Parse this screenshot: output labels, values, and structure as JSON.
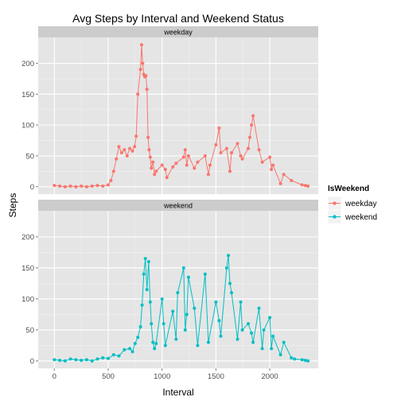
{
  "chart_data": {
    "type": "line",
    "title": "Avg Steps by Interval and Weekend Status",
    "xlabel": "Interval",
    "ylabel": "Steps",
    "xlim": [
      -150,
      2450
    ],
    "ylim": [
      -12,
      242
    ],
    "x_ticks": [
      0,
      500,
      1000,
      1500,
      2000
    ],
    "y_ticks": [
      0,
      50,
      100,
      150,
      200
    ],
    "grid": true,
    "facet_by": "IsWeekend",
    "legend": {
      "title": "IsWeekend",
      "position": "right",
      "entries": [
        "weekday",
        "weekend"
      ]
    },
    "series": [
      {
        "name": "weekday",
        "color": "#F8766D",
        "x": [
          0,
          50,
          100,
          150,
          200,
          250,
          300,
          350,
          400,
          450,
          500,
          525,
          550,
          575,
          600,
          625,
          650,
          675,
          700,
          725,
          745,
          760,
          775,
          800,
          810,
          820,
          830,
          840,
          850,
          860,
          870,
          880,
          890,
          900,
          915,
          930,
          945,
          1000,
          1030,
          1045,
          1100,
          1130,
          1200,
          1215,
          1230,
          1245,
          1300,
          1330,
          1400,
          1430,
          1445,
          1500,
          1530,
          1545,
          1600,
          1630,
          1645,
          1700,
          1730,
          1745,
          1800,
          1815,
          1830,
          1845,
          1900,
          1930,
          2000,
          2015,
          2030,
          2100,
          2130,
          2200,
          2300,
          2330,
          2355
        ],
        "y": [
          2,
          1,
          0,
          1,
          0,
          1,
          0,
          1,
          2,
          1,
          3,
          10,
          25,
          45,
          65,
          55,
          60,
          50,
          62,
          58,
          65,
          82,
          150,
          190,
          230,
          200,
          182,
          178,
          180,
          158,
          80,
          60,
          48,
          30,
          40,
          20,
          25,
          35,
          28,
          15,
          32,
          38,
          48,
          60,
          35,
          50,
          30,
          40,
          50,
          20,
          35,
          68,
          95,
          55,
          62,
          25,
          55,
          70,
          50,
          45,
          62,
          80,
          100,
          115,
          60,
          40,
          48,
          28,
          35,
          5,
          20,
          10,
          3,
          2,
          1
        ]
      },
      {
        "name": "weekend",
        "color": "#00BFC4",
        "x": [
          0,
          50,
          100,
          150,
          200,
          250,
          300,
          350,
          400,
          450,
          500,
          550,
          600,
          650,
          700,
          725,
          750,
          775,
          800,
          815,
          830,
          845,
          860,
          875,
          890,
          900,
          915,
          930,
          945,
          1000,
          1015,
          1030,
          1100,
          1130,
          1145,
          1200,
          1215,
          1230,
          1245,
          1300,
          1330,
          1400,
          1430,
          1500,
          1530,
          1545,
          1600,
          1615,
          1630,
          1645,
          1700,
          1730,
          1745,
          1800,
          1830,
          1845,
          1900,
          1930,
          1945,
          2000,
          2015,
          2030,
          2100,
          2130,
          2200,
          2230,
          2300,
          2330,
          2355
        ],
        "y": [
          2,
          1,
          0,
          3,
          2,
          1,
          2,
          0,
          3,
          5,
          4,
          10,
          8,
          18,
          20,
          15,
          28,
          38,
          55,
          90,
          140,
          165,
          115,
          160,
          95,
          60,
          30,
          20,
          28,
          100,
          60,
          25,
          80,
          35,
          110,
          150,
          50,
          75,
          135,
          85,
          25,
          140,
          30,
          95,
          65,
          40,
          150,
          170,
          125,
          110,
          35,
          95,
          50,
          60,
          45,
          30,
          85,
          20,
          50,
          70,
          20,
          40,
          10,
          30,
          5,
          3,
          2,
          1,
          0
        ]
      }
    ]
  }
}
